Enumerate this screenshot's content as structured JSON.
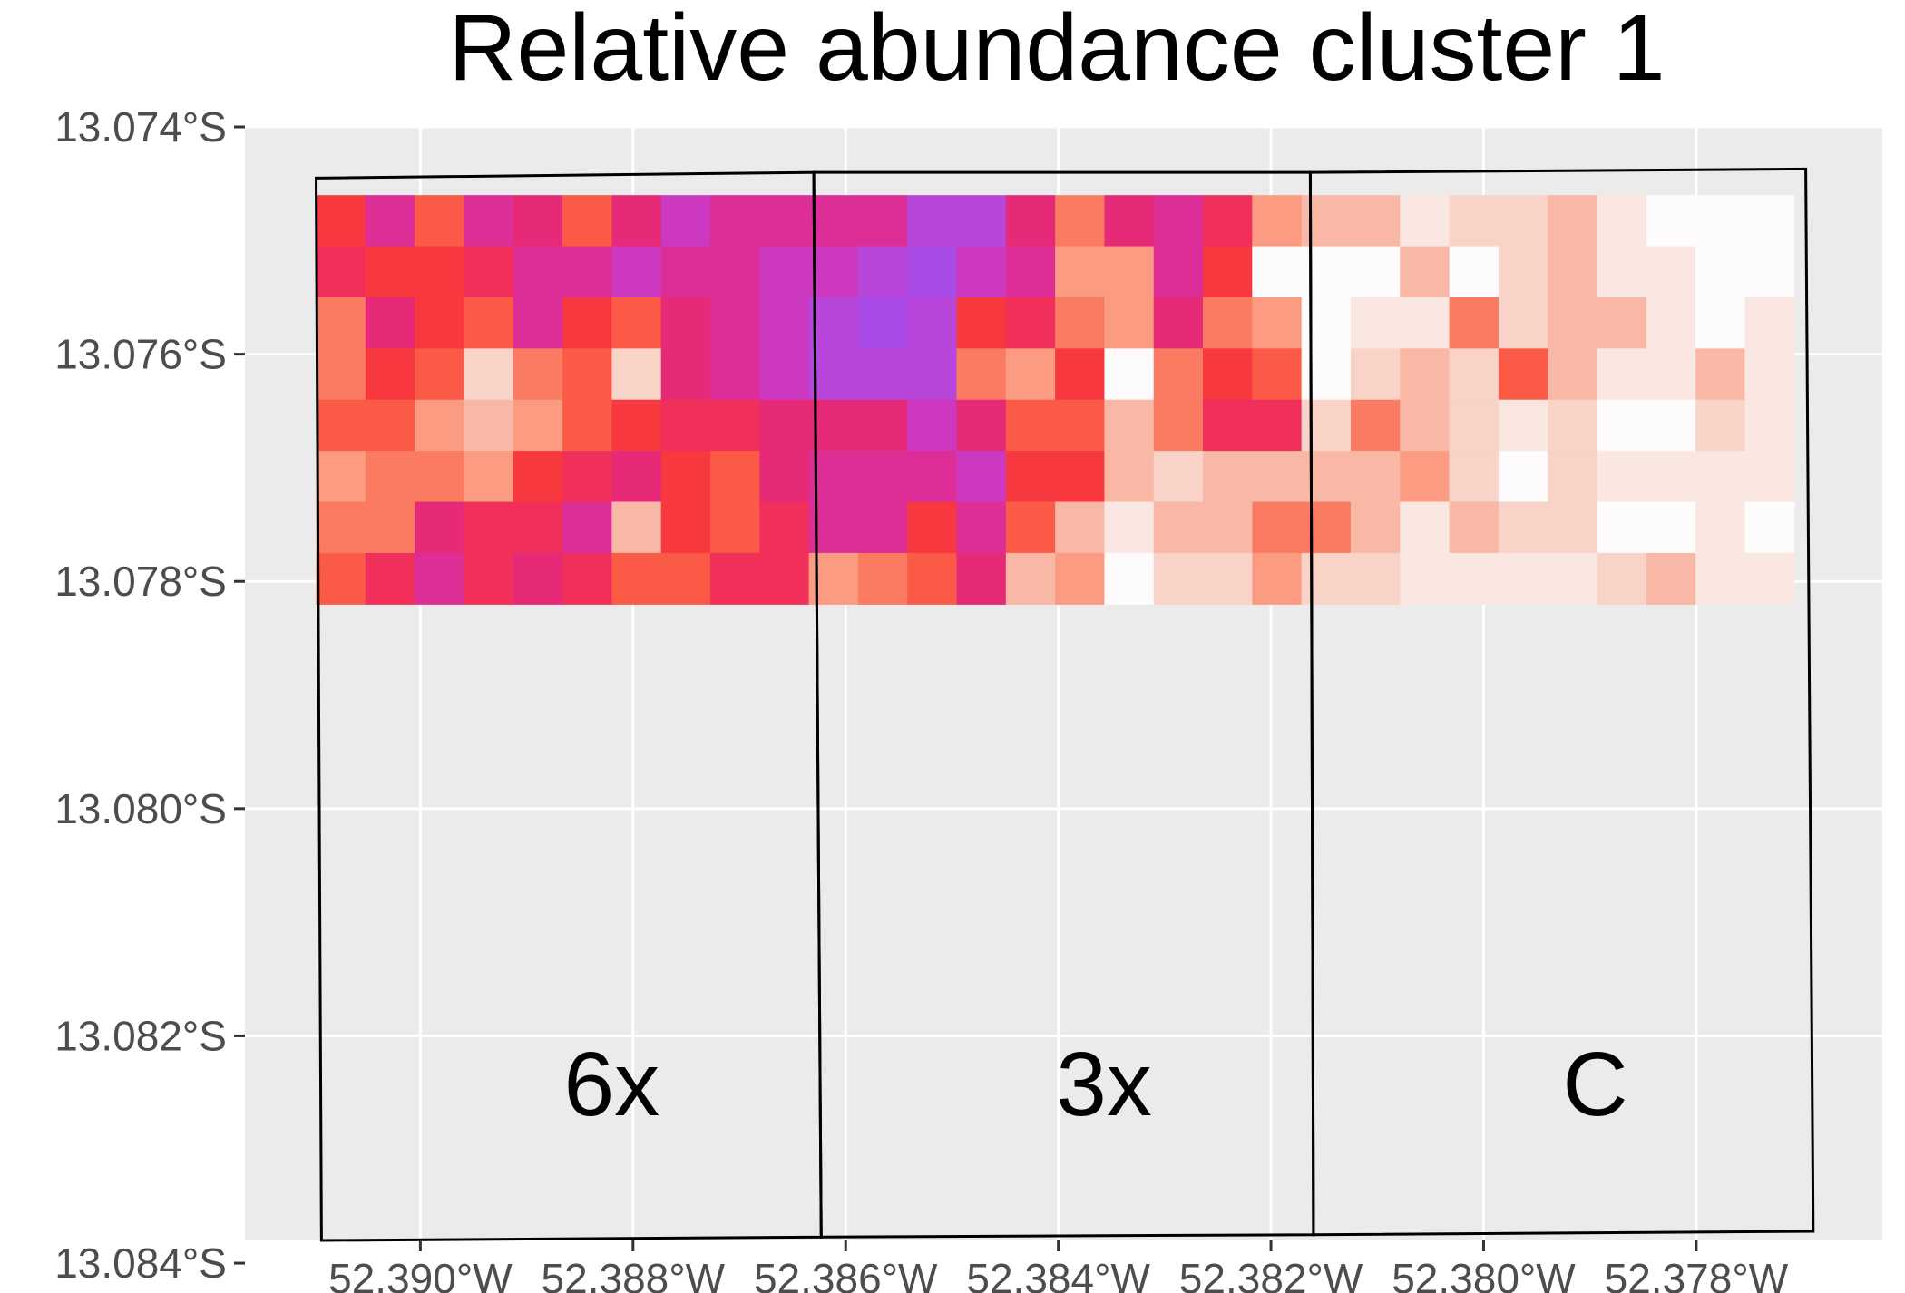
{
  "chart_data": {
    "type": "heatmap",
    "title": "Relative abundance cluster 1",
    "xlabel": "",
    "ylabel": "",
    "x_ticks": [
      {
        "value": -52.39,
        "label": "52.390°W"
      },
      {
        "value": -52.388,
        "label": "52.388°W"
      },
      {
        "value": -52.386,
        "label": "52.386°W"
      },
      {
        "value": -52.384,
        "label": "52.384°W"
      },
      {
        "value": -52.382,
        "label": "52.382°W"
      },
      {
        "value": -52.38,
        "label": "52.380°W"
      },
      {
        "value": -52.378,
        "label": "52.378°W"
      }
    ],
    "y_ticks": [
      {
        "value": -13.074,
        "label": "13.074°S"
      },
      {
        "value": -13.076,
        "label": "13.076°S"
      },
      {
        "value": -13.078,
        "label": "13.078°S"
      },
      {
        "value": -13.08,
        "label": "13.080°S"
      },
      {
        "value": -13.082,
        "label": "13.082°S"
      },
      {
        "value": -13.084,
        "label": "13.084°S"
      }
    ],
    "xlim": [
      -52.39165,
      -52.37625
    ],
    "ylim": [
      -13.0838,
      -13.074
    ],
    "grid": true,
    "legend": "none",
    "colors": {
      "panel": "#ebebeb",
      "grid": "#ffffff",
      "plot_outline": "#000000",
      "tick_text": "#4d4d4d",
      "tick_mark": "#333333"
    },
    "color_palette": [
      "#fdfbfb",
      "#fbe7e1",
      "#f9d3c7",
      "#f9b8a6",
      "#fb9b82",
      "#fb7b62",
      "#fb5a46",
      "#f7383e",
      "#f0305a",
      "#e62a78",
      "#dd2e98",
      "#cc38c0",
      "#b846da",
      "#a84ae6"
    ],
    "grid_extent": {
      "lon": [
        -52.39098,
        -52.37708
      ],
      "lat": [
        -13.0746,
        -13.0782
      ]
    },
    "grid_rows": 8,
    "grid_cols": 30,
    "cells": [
      [
        7,
        10,
        6,
        10,
        9,
        6,
        9,
        11,
        10,
        10,
        10,
        10,
        12,
        12,
        9,
        5,
        9,
        10,
        8,
        4,
        3,
        3,
        1,
        2,
        2,
        3,
        1,
        0,
        0,
        0
      ],
      [
        8,
        7,
        7,
        8,
        10,
        10,
        11,
        10,
        10,
        11,
        11,
        12,
        13,
        11,
        10,
        4,
        4,
        10,
        7,
        0,
        0,
        0,
        3,
        0,
        2,
        3,
        1,
        1,
        0,
        0
      ],
      [
        5,
        9,
        7,
        6,
        10,
        7,
        6,
        9,
        10,
        11,
        12,
        13,
        12,
        7,
        8,
        5,
        4,
        9,
        5,
        4,
        0,
        1,
        1,
        5,
        2,
        3,
        3,
        1,
        0,
        1
      ],
      [
        5,
        7,
        6,
        2,
        5,
        6,
        2,
        9,
        10,
        11,
        12,
        12,
        12,
        5,
        4,
        7,
        0,
        5,
        7,
        6,
        0,
        2,
        3,
        2,
        6,
        3,
        1,
        1,
        3,
        1
      ],
      [
        6,
        6,
        4,
        3,
        4,
        6,
        7,
        8,
        8,
        9,
        9,
        9,
        11,
        9,
        6,
        6,
        3,
        5,
        8,
        8,
        2,
        5,
        3,
        2,
        1,
        2,
        0,
        0,
        2,
        1
      ],
      [
        4,
        5,
        5,
        4,
        7,
        8,
        9,
        7,
        6,
        9,
        10,
        10,
        10,
        11,
        7,
        7,
        3,
        2,
        3,
        3,
        3,
        3,
        4,
        2,
        0,
        2,
        1,
        1,
        1,
        1
      ],
      [
        5,
        5,
        9,
        8,
        8,
        10,
        3,
        7,
        6,
        8,
        10,
        10,
        7,
        10,
        6,
        3,
        1,
        3,
        3,
        5,
        5,
        3,
        1,
        3,
        2,
        2,
        0,
        0,
        1,
        0
      ],
      [
        6,
        8,
        10,
        8,
        9,
        8,
        6,
        6,
        8,
        8,
        4,
        5,
        6,
        9,
        3,
        4,
        0,
        2,
        2,
        4,
        2,
        2,
        1,
        1,
        1,
        1,
        2,
        3,
        1,
        1
      ]
    ],
    "plots": [
      {
        "label": "6x",
        "corners": [
          [
            -52.39098,
            -13.07445
          ],
          [
            -52.3863,
            -13.0744
          ],
          [
            -52.38623,
            -13.08377
          ],
          [
            -52.39093,
            -13.0838
          ]
        ],
        "label_at": [
          -52.3882,
          -13.0827
        ]
      },
      {
        "label": "3x",
        "corners": [
          [
            -52.3863,
            -13.0744
          ],
          [
            -52.38163,
            -13.0744
          ],
          [
            -52.3816,
            -13.08375
          ],
          [
            -52.38623,
            -13.08377
          ]
        ],
        "label_at": [
          -52.38357,
          -13.0827
        ]
      },
      {
        "label": "C",
        "corners": [
          [
            -52.38163,
            -13.0744
          ],
          [
            -52.37697,
            -13.07437
          ],
          [
            -52.3769,
            -13.08372
          ],
          [
            -52.3816,
            -13.08375
          ]
        ],
        "label_at": [
          -52.37895,
          -13.0827
        ]
      }
    ]
  }
}
